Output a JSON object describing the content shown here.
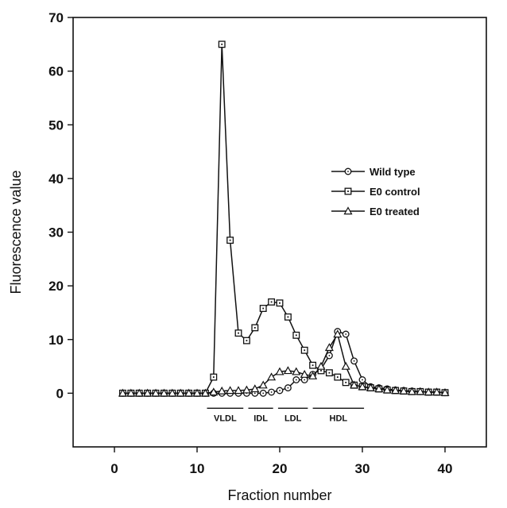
{
  "chart_data": {
    "type": "line",
    "title": "",
    "xlabel": "Fraction number",
    "ylabel": "Fluorescence value",
    "xlim": [
      -5,
      45
    ],
    "ylim": [
      -10,
      70
    ],
    "xticks": [
      0,
      10,
      20,
      30,
      40
    ],
    "yticks": [
      0,
      10,
      20,
      30,
      40,
      50,
      60,
      70
    ],
    "grid": false,
    "legend_position": "right-middle",
    "x": [
      1,
      2,
      3,
      4,
      5,
      6,
      7,
      8,
      9,
      10,
      11,
      12,
      13,
      14,
      15,
      16,
      17,
      18,
      19,
      20,
      21,
      22,
      23,
      24,
      25,
      26,
      27,
      28,
      29,
      30,
      31,
      32,
      33,
      34,
      35,
      36,
      37,
      38,
      39,
      40
    ],
    "series": [
      {
        "name": "Wild type",
        "marker": "circle",
        "values": [
          0,
          0,
          0,
          0,
          0,
          0,
          0,
          0,
          0,
          0,
          0,
          0,
          0,
          0,
          0,
          0,
          0,
          0,
          0.2,
          0.5,
          1.0,
          2.5,
          2.5,
          3.5,
          4.5,
          7.0,
          11.5,
          11.0,
          6.0,
          2.5,
          1.2,
          1.0,
          0.8,
          0.6,
          0.5,
          0.4,
          0.3,
          0.2,
          0.2,
          0.1
        ]
      },
      {
        "name": "E0 control",
        "marker": "square",
        "values": [
          0,
          0,
          0,
          0,
          0,
          0,
          0,
          0,
          0,
          0,
          0,
          3.0,
          65.0,
          28.5,
          11.2,
          9.8,
          12.2,
          15.8,
          17.0,
          16.8,
          14.2,
          10.8,
          8.0,
          5.2,
          4.2,
          3.8,
          3.0,
          2.0,
          1.5,
          1.2,
          1.0,
          0.8,
          0.6,
          0.5,
          0.4,
          0.3,
          0.3,
          0.2,
          0.2,
          0.1
        ]
      },
      {
        "name": "E0 treated",
        "marker": "triangle",
        "values": [
          0,
          0,
          0,
          0,
          0,
          0,
          0,
          0,
          0,
          0,
          0,
          0.2,
          0.4,
          0.5,
          0.5,
          0.6,
          0.8,
          1.5,
          3.0,
          4.0,
          4.2,
          4.0,
          3.5,
          3.2,
          5.0,
          8.5,
          11.0,
          5.0,
          1.5,
          1.2,
          1.0,
          0.8,
          0.6,
          0.5,
          0.4,
          0.3,
          0.3,
          0.2,
          0.2,
          0.1
        ]
      }
    ],
    "regions": [
      {
        "label": "VLDL",
        "x_start": 11.2,
        "x_end": 15.6
      },
      {
        "label": "IDL",
        "x_start": 16.2,
        "x_end": 19.2
      },
      {
        "label": "LDL",
        "x_start": 19.8,
        "x_end": 23.4
      },
      {
        "label": "HDL",
        "x_start": 24.0,
        "x_end": 30.2
      }
    ]
  }
}
